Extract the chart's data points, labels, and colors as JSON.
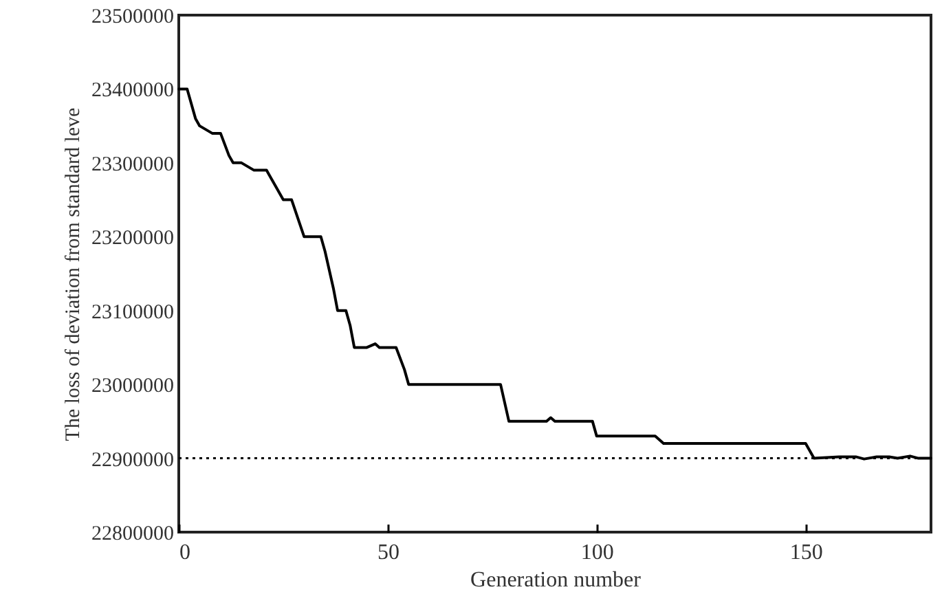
{
  "chart_data": {
    "type": "line",
    "xlabel": "Generation number",
    "ylabel": "The loss of deviation from standard leve",
    "x": [
      0,
      2,
      4,
      5,
      8,
      10,
      12,
      13,
      15,
      18,
      21,
      23,
      25,
      27,
      30,
      34,
      35,
      37,
      38,
      40,
      41,
      42,
      45,
      47,
      48,
      52,
      54,
      55,
      77,
      79,
      88,
      89,
      90,
      99,
      100,
      114,
      116,
      150,
      152,
      158,
      162,
      164,
      167,
      170,
      172,
      175,
      177,
      180
    ],
    "series": [
      {
        "color": "#000000",
        "line_style": "solid",
        "values": [
          23400000,
          23400000,
          23360000,
          23350000,
          23340000,
          23340000,
          23310000,
          23300000,
          23300000,
          23290000,
          23290000,
          23270000,
          23250000,
          23250000,
          23200000,
          23200000,
          23180000,
          23130000,
          23100000,
          23100000,
          23080000,
          23050000,
          23050000,
          23055000,
          23050000,
          23050000,
          23020000,
          23000000,
          23000000,
          22950000,
          22950000,
          22955000,
          22950000,
          22950000,
          22930000,
          22930000,
          22920000,
          22920000,
          22900000,
          22902000,
          22902000,
          22899000,
          22902000,
          22902000,
          22900000,
          22903000,
          22900000,
          22900000
        ]
      }
    ],
    "xlim": [
      0,
      180
    ],
    "xticks": [
      0,
      50,
      100,
      150
    ],
    "ylim": [
      22800000,
      23500000
    ],
    "yticks": [
      22800000,
      22900000,
      23000000,
      23100000,
      23200000,
      23300000,
      23400000,
      23500000
    ],
    "ref_lines": [
      {
        "axis": "y",
        "value": 22900000,
        "color": "#000000",
        "line_style": "dotted"
      }
    ]
  }
}
